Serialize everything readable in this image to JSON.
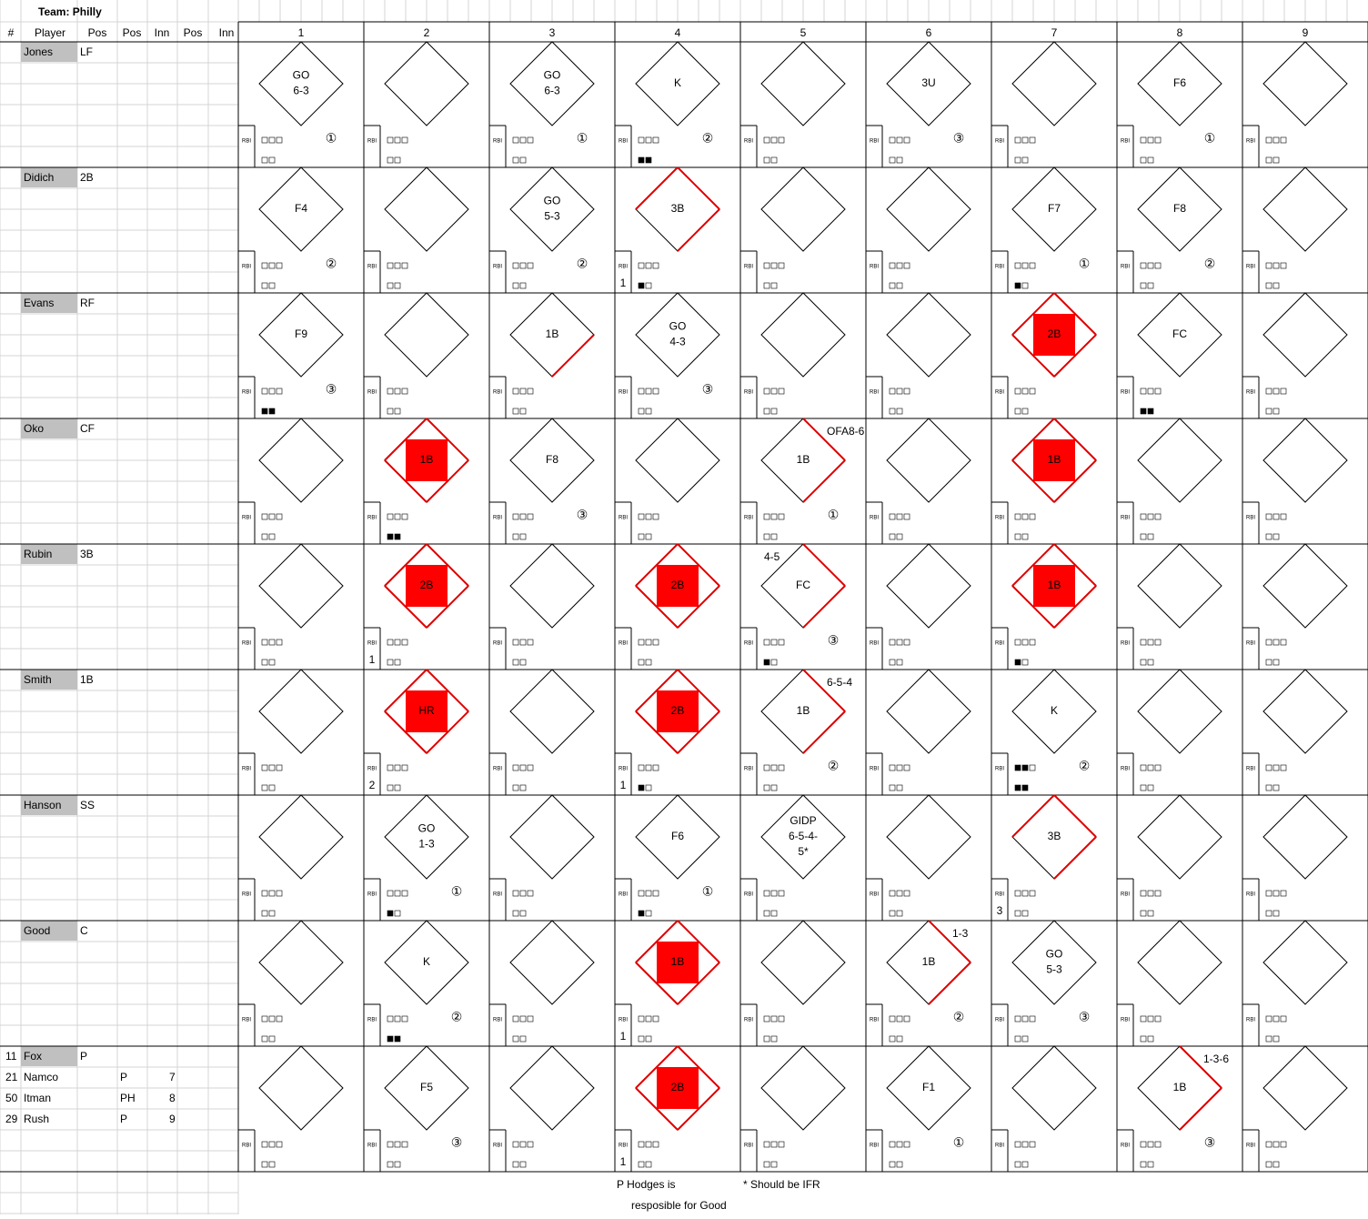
{
  "title": "Team: Philly",
  "headers": [
    "#",
    "Player",
    "Pos",
    "Pos",
    "Inn",
    "Pos",
    "Inn"
  ],
  "innings": [
    1,
    2,
    3,
    4,
    5,
    6,
    7,
    8,
    9
  ],
  "rbi_label": "RBI",
  "rows": [
    {
      "name": "Jones",
      "pos": "LF",
      "cells": [
        {
          "result": [
            "GO",
            "6-3"
          ],
          "out": "①"
        },
        null,
        {
          "result": [
            "GO",
            "6-3"
          ],
          "out": "①"
        },
        {
          "result": [
            "K"
          ],
          "out": "②",
          "strikes": 2
        },
        null,
        {
          "result": [
            "3U"
          ],
          "out": "③"
        },
        null,
        {
          "result": [
            "F6"
          ],
          "out": "①"
        },
        null
      ]
    },
    {
      "name": "Didich",
      "pos": "2B",
      "cells": [
        {
          "result": [
            "F4"
          ],
          "out": "②"
        },
        null,
        {
          "result": [
            "GO",
            "5-3"
          ],
          "out": "②"
        },
        {
          "result": [
            "3B"
          ],
          "bases": 3,
          "rbi": 1,
          "strikes": 1
        },
        null,
        null,
        {
          "result": [
            "F7"
          ],
          "out": "①",
          "strikes": 1
        },
        {
          "result": [
            "F8"
          ],
          "out": "②"
        },
        null
      ]
    },
    {
      "name": "Evans",
      "pos": "RF",
      "cells": [
        {
          "result": [
            "F9"
          ],
          "out": "③",
          "strikes": 2
        },
        null,
        {
          "result": [
            "1B"
          ],
          "bases": 1
        },
        {
          "result": [
            "GO",
            "4-3"
          ],
          "out": "③"
        },
        null,
        null,
        {
          "result": [
            "2B"
          ],
          "bases": 4
        },
        {
          "result": [
            "FC"
          ],
          "strikes": 2
        },
        null
      ]
    },
    {
      "name": "Oko",
      "pos": "CF",
      "cells": [
        null,
        {
          "result": [
            "1B"
          ],
          "bases": 4,
          "strikes": 2
        },
        {
          "result": [
            "F8"
          ],
          "out": "③"
        },
        null,
        {
          "result": [
            "1B"
          ],
          "bases": 2,
          "note": "OFA8-6",
          "out": "①"
        },
        null,
        {
          "result": [
            "1B"
          ],
          "bases": 4
        },
        null,
        null
      ]
    },
    {
      "name": "Rubin",
      "pos": "3B",
      "cells": [
        null,
        {
          "result": [
            "2B"
          ],
          "bases": 4,
          "rbi": 1
        },
        null,
        {
          "result": [
            "2B"
          ],
          "bases": 4
        },
        {
          "result": [
            "FC"
          ],
          "bases": 2,
          "note": "4-5",
          "out": "③",
          "strikes": 1
        },
        null,
        {
          "result": [
            "1B"
          ],
          "bases": 4,
          "strikes": 1
        },
        null,
        null
      ]
    },
    {
      "name": "Smith",
      "pos": "1B",
      "cells": [
        null,
        {
          "result": [
            "HR"
          ],
          "bases": 4,
          "rbi": 2
        },
        null,
        {
          "result": [
            "2B"
          ],
          "bases": 4,
          "rbi": 1,
          "strikes": 1
        },
        {
          "result": [
            "1B"
          ],
          "bases": 2,
          "note": "6-5-4",
          "out": "②"
        },
        null,
        {
          "result": [
            "K"
          ],
          "out": "②",
          "balls": 2,
          "strikes": 2
        },
        null,
        null
      ]
    },
    {
      "name": "Hanson",
      "pos": "SS",
      "cells": [
        null,
        {
          "result": [
            "GO",
            "1-3"
          ],
          "out": "①",
          "strikes": 1
        },
        null,
        {
          "result": [
            "F6"
          ],
          "out": "①",
          "strikes": 1
        },
        {
          "result": [
            "GIDP",
            "6-5-4-",
            "5*"
          ]
        },
        null,
        {
          "result": [
            "3B"
          ],
          "bases": 3,
          "rbi": 3
        },
        null,
        null
      ]
    },
    {
      "name": "Good",
      "pos": "C",
      "cells": [
        null,
        {
          "result": [
            "K"
          ],
          "out": "②",
          "strikes": 2
        },
        null,
        {
          "result": [
            "1B"
          ],
          "bases": 4,
          "rbi": 1
        },
        null,
        {
          "result": [
            "1B"
          ],
          "bases": 2,
          "note": "1-3",
          "out": "②"
        },
        {
          "result": [
            "GO",
            "5-3"
          ],
          "out": "③"
        },
        null,
        null
      ]
    },
    {
      "num": 11,
      "name": "Fox",
      "pos": "P",
      "subs": [
        {
          "num": 21,
          "name": "Namco",
          "pos": "P",
          "inn": 7
        },
        {
          "num": 50,
          "name": "Itman",
          "pos": "PH",
          "inn": 8
        },
        {
          "num": 29,
          "name": "Rush",
          "pos": "P",
          "inn": 9
        }
      ],
      "cells": [
        null,
        {
          "result": [
            "F5"
          ],
          "out": "③"
        },
        null,
        {
          "result": [
            "2B"
          ],
          "bases": 4,
          "rbi": 1
        },
        null,
        {
          "result": [
            "F1"
          ],
          "out": "①"
        },
        null,
        {
          "result": [
            "1B"
          ],
          "bases": 2,
          "note": "1-3-6",
          "out": "③"
        },
        null
      ]
    }
  ],
  "notes": [
    "P Hodges is",
    "resposible for Good",
    "* Should be IFR"
  ]
}
